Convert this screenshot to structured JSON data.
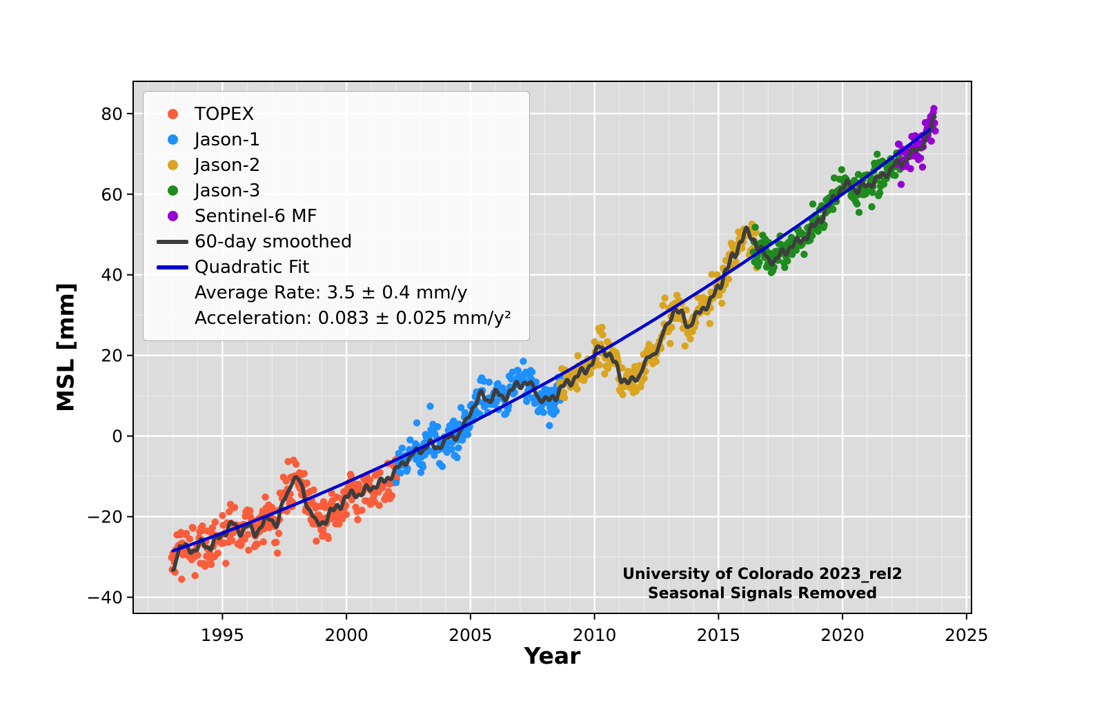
{
  "chart_data": {
    "type": "scatter",
    "title": "",
    "xlabel": "Year",
    "ylabel": "MSL [mm]",
    "xlim": [
      1991.4,
      2025.2
    ],
    "ylim": [
      -44,
      88
    ],
    "x_ticks": [
      1995,
      2000,
      2005,
      2010,
      2015,
      2020,
      2025
    ],
    "y_ticks": [
      -40,
      -20,
      0,
      20,
      40,
      60,
      80
    ],
    "plot_bg_color": "#dcdcdc",
    "grid_color": "#ffffff",
    "grid": "major white lines with faint minor lines (1 yr / 10 mm)",
    "legend_position": "upper left",
    "missions": [
      {
        "name": "TOPEX",
        "color": "#f95d3b",
        "start": 1992.95,
        "end": 2002.1,
        "noise_sd_mm": 3.0
      },
      {
        "name": "Jason-1",
        "color": "#1e90ff",
        "start": 2002.0,
        "end": 2008.75,
        "noise_sd_mm": 2.4
      },
      {
        "name": "Jason-2",
        "color": "#d9a520",
        "start": 2008.6,
        "end": 2016.55,
        "noise_sd_mm": 2.4
      },
      {
        "name": "Jason-3",
        "color": "#1f8b1f",
        "start": 2016.4,
        "end": 2022.4,
        "noise_sd_mm": 2.2
      },
      {
        "name": "Sentinel-6 MF",
        "color": "#9400d3",
        "start": 2022.2,
        "end": 2023.75,
        "noise_sd_mm": 2.4
      }
    ],
    "smoothed": {
      "label": "60-day smoothed",
      "color": "#3d3d3d",
      "points": [
        [
          1992.95,
          -34.5
        ],
        [
          1993.0,
          -33
        ],
        [
          1993.15,
          -29.5
        ],
        [
          1993.3,
          -28
        ],
        [
          1993.6,
          -27.5
        ],
        [
          1993.9,
          -28.5
        ],
        [
          1994.2,
          -26.5
        ],
        [
          1994.5,
          -27.5
        ],
        [
          1994.8,
          -25.5
        ],
        [
          1995.1,
          -23.5
        ],
        [
          1995.4,
          -22
        ],
        [
          1995.7,
          -23.5
        ],
        [
          1996.0,
          -22.5
        ],
        [
          1996.3,
          -24
        ],
        [
          1996.6,
          -22
        ],
        [
          1996.9,
          -20.5
        ],
        [
          1997.2,
          -21.5
        ],
        [
          1997.5,
          -16
        ],
        [
          1997.8,
          -11
        ],
        [
          1998.0,
          -10.5
        ],
        [
          1998.2,
          -13
        ],
        [
          1998.5,
          -18
        ],
        [
          1998.8,
          -22
        ],
        [
          1999.1,
          -21
        ],
        [
          1999.4,
          -19
        ],
        [
          1999.7,
          -17
        ],
        [
          2000.0,
          -15.5
        ],
        [
          2000.3,
          -14
        ],
        [
          2000.6,
          -14.5
        ],
        [
          2000.9,
          -13
        ],
        [
          2001.2,
          -12
        ],
        [
          2001.5,
          -11.5
        ],
        [
          2001.8,
          -9.5
        ],
        [
          2002.1,
          -8
        ],
        [
          2002.4,
          -6
        ],
        [
          2002.7,
          -4.5
        ],
        [
          2003.0,
          -3.5
        ],
        [
          2003.3,
          -2
        ],
        [
          2003.6,
          -3
        ],
        [
          2003.9,
          -1.5
        ],
        [
          2004.2,
          -0.5
        ],
        [
          2004.5,
          0.5
        ],
        [
          2004.8,
          3
        ],
        [
          2005.1,
          7.5
        ],
        [
          2005.4,
          10
        ],
        [
          2005.7,
          9
        ],
        [
          2006.0,
          10.5
        ],
        [
          2006.3,
          9.5
        ],
        [
          2006.6,
          11
        ],
        [
          2006.9,
          12.5
        ],
        [
          2007.2,
          13.5
        ],
        [
          2007.5,
          12
        ],
        [
          2007.8,
          9.5
        ],
        [
          2008.1,
          8.5
        ],
        [
          2008.4,
          10
        ],
        [
          2008.7,
          12
        ],
        [
          2009.0,
          13.5
        ],
        [
          2009.3,
          15
        ],
        [
          2009.6,
          16
        ],
        [
          2009.9,
          18.5
        ],
        [
          2010.2,
          22
        ],
        [
          2010.5,
          21
        ],
        [
          2010.8,
          18
        ],
        [
          2011.1,
          14.5
        ],
        [
          2011.4,
          13
        ],
        [
          2011.7,
          14.5
        ],
        [
          2012.0,
          17.5
        ],
        [
          2012.3,
          20
        ],
        [
          2012.6,
          22.5
        ],
        [
          2012.9,
          27
        ],
        [
          2013.2,
          31.5
        ],
        [
          2013.5,
          30
        ],
        [
          2013.8,
          27.5
        ],
        [
          2014.1,
          29.5
        ],
        [
          2014.4,
          32
        ],
        [
          2014.7,
          33.5
        ],
        [
          2015.0,
          37
        ],
        [
          2015.3,
          41
        ],
        [
          2015.6,
          44.5
        ],
        [
          2015.9,
          48.5
        ],
        [
          2016.1,
          50.5
        ],
        [
          2016.4,
          49
        ],
        [
          2016.7,
          46
        ],
        [
          2017.0,
          44
        ],
        [
          2017.3,
          43.5
        ],
        [
          2017.6,
          45.5
        ],
        [
          2017.9,
          47
        ],
        [
          2018.2,
          48
        ],
        [
          2018.5,
          49.5
        ],
        [
          2018.8,
          51.5
        ],
        [
          2019.1,
          54
        ],
        [
          2019.4,
          56.5
        ],
        [
          2019.7,
          59.5
        ],
        [
          2020.0,
          61.5
        ],
        [
          2020.3,
          62.5
        ],
        [
          2020.6,
          61
        ],
        [
          2020.9,
          62
        ],
        [
          2021.2,
          63
        ],
        [
          2021.5,
          64
        ],
        [
          2021.8,
          65.5
        ],
        [
          2022.1,
          67
        ],
        [
          2022.4,
          68
        ],
        [
          2022.7,
          69.5
        ],
        [
          2023.0,
          71
        ],
        [
          2023.3,
          73
        ],
        [
          2023.5,
          75
        ],
        [
          2023.72,
          79.5
        ]
      ]
    },
    "fit": {
      "label": "Quadratic Fit",
      "color": "#0000cd",
      "t0": 1993,
      "coeffs": [
        -28.5,
        2.131,
        0.0425
      ],
      "range": [
        1993.0,
        2023.7
      ],
      "average_rate": "3.5 ± 0.4 mm/y",
      "acceleration": "0.083 ± 0.025 mm/y²"
    },
    "legend": {
      "items": [
        {
          "marker": "dot",
          "color": "#f95d3b",
          "label": "TOPEX"
        },
        {
          "marker": "dot",
          "color": "#1e90ff",
          "label": "Jason-1"
        },
        {
          "marker": "dot",
          "color": "#d9a520",
          "label": "Jason-2"
        },
        {
          "marker": "dot",
          "color": "#1f8b1f",
          "label": "Jason-3"
        },
        {
          "marker": "dot",
          "color": "#9400d3",
          "label": "Sentinel-6 MF"
        },
        {
          "marker": "line",
          "color": "#3d3d3d",
          "label": "60-day smoothed"
        },
        {
          "marker": "line",
          "color": "#0000cd",
          "label": "Quadratic Fit"
        },
        {
          "marker": "none",
          "color": "",
          "label": "Average Rate: 3.5 ± 0.4 mm/y"
        },
        {
          "marker": "none",
          "color": "",
          "label": "Acceleration: 0.083 ± 0.025 mm/y²"
        }
      ]
    },
    "annotation": {
      "lines": [
        "University of Colorado 2023_rel2",
        "Seasonal Signals Removed"
      ]
    },
    "scatter_gen": {
      "cadence_years": 0.027,
      "seed": 42,
      "marker_radius_px": 5.2
    }
  }
}
